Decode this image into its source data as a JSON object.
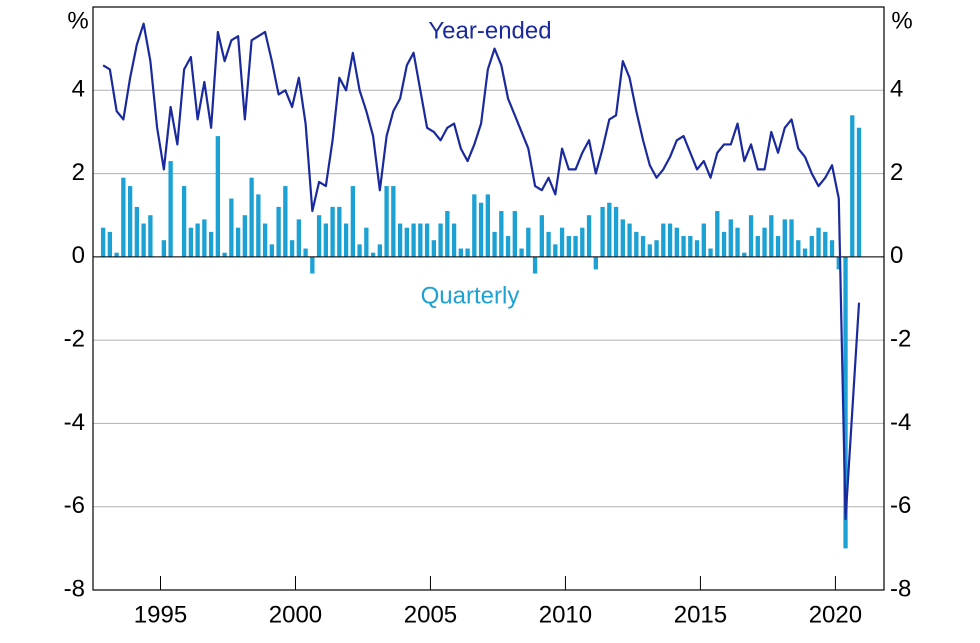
{
  "chart_data": {
    "type": "bar_line",
    "y_unit": "%",
    "x": [
      1992.875,
      1993.125,
      1993.375,
      1993.625,
      1993.875,
      1994.125,
      1994.375,
      1994.625,
      1994.875,
      1995.125,
      1995.375,
      1995.625,
      1995.875,
      1996.125,
      1996.375,
      1996.625,
      1996.875,
      1997.125,
      1997.375,
      1997.625,
      1997.875,
      1998.125,
      1998.375,
      1998.625,
      1998.875,
      1999.125,
      1999.375,
      1999.625,
      1999.875,
      2000.125,
      2000.375,
      2000.625,
      2000.875,
      2001.125,
      2001.375,
      2001.625,
      2001.875,
      2002.125,
      2002.375,
      2002.625,
      2002.875,
      2003.125,
      2003.375,
      2003.625,
      2003.875,
      2004.125,
      2004.375,
      2004.625,
      2004.875,
      2005.125,
      2005.375,
      2005.625,
      2005.875,
      2006.125,
      2006.375,
      2006.625,
      2006.875,
      2007.125,
      2007.375,
      2007.625,
      2007.875,
      2008.125,
      2008.375,
      2008.625,
      2008.875,
      2009.125,
      2009.375,
      2009.625,
      2009.875,
      2010.125,
      2010.375,
      2010.625,
      2010.875,
      2011.125,
      2011.375,
      2011.625,
      2011.875,
      2012.125,
      2012.375,
      2012.625,
      2012.875,
      2013.125,
      2013.375,
      2013.625,
      2013.875,
      2014.125,
      2014.375,
      2014.625,
      2014.875,
      2015.125,
      2015.375,
      2015.625,
      2015.875,
      2016.125,
      2016.375,
      2016.625,
      2016.875,
      2017.125,
      2017.375,
      2017.625,
      2017.875,
      2018.125,
      2018.375,
      2018.625,
      2018.875,
      2019.125,
      2019.375,
      2019.625,
      2019.875,
      2020.125,
      2020.375,
      2020.625,
      2020.875
    ],
    "series": [
      {
        "name": "Quarterly",
        "type": "bar",
        "color": "#1ba1d4",
        "values": [
          0.7,
          0.6,
          0.1,
          1.9,
          1.7,
          1.2,
          0.8,
          1.0,
          0.0,
          0.4,
          2.3,
          0.0,
          1.7,
          0.7,
          0.8,
          0.9,
          0.6,
          2.9,
          0.1,
          1.4,
          0.7,
          1.0,
          1.9,
          1.5,
          0.8,
          0.3,
          1.2,
          1.7,
          0.4,
          0.9,
          0.2,
          -0.4,
          1.0,
          0.8,
          1.2,
          1.2,
          0.8,
          1.7,
          0.3,
          0.7,
          0.1,
          0.3,
          1.7,
          1.7,
          0.8,
          0.7,
          0.8,
          0.8,
          0.8,
          0.4,
          0.8,
          1.1,
          0.8,
          0.2,
          0.2,
          1.5,
          1.3,
          1.5,
          0.6,
          1.1,
          0.5,
          1.1,
          0.2,
          0.7,
          -0.4,
          1.0,
          0.6,
          0.3,
          0.7,
          0.5,
          0.5,
          0.7,
          1.0,
          -0.3,
          1.2,
          1.3,
          1.2,
          0.9,
          0.8,
          0.6,
          0.5,
          0.3,
          0.4,
          0.8,
          0.8,
          0.7,
          0.5,
          0.5,
          0.4,
          0.8,
          0.2,
          1.1,
          0.6,
          0.9,
          0.7,
          0.1,
          1.0,
          0.5,
          0.7,
          1.0,
          0.5,
          0.9,
          0.9,
          0.4,
          0.2,
          0.5,
          0.7,
          0.6,
          0.4,
          -0.3,
          -7.0,
          3.4,
          3.1
        ]
      },
      {
        "name": "Year-ended",
        "type": "line",
        "color": "#1a2a9e",
        "values": [
          4.6,
          4.5,
          3.5,
          3.3,
          4.3,
          5.1,
          5.6,
          4.7,
          3.1,
          2.1,
          3.6,
          2.7,
          4.5,
          4.8,
          3.3,
          4.2,
          3.1,
          5.4,
          4.7,
          5.2,
          5.3,
          3.3,
          5.2,
          5.3,
          5.4,
          4.7,
          3.9,
          4.0,
          3.6,
          4.3,
          3.2,
          1.1,
          1.8,
          1.7,
          2.8,
          4.3,
          4.0,
          4.9,
          4.0,
          3.5,
          2.9,
          1.6,
          2.9,
          3.5,
          3.8,
          4.6,
          4.9,
          4.0,
          3.1,
          3.0,
          2.8,
          3.1,
          3.2,
          2.6,
          2.3,
          2.7,
          3.2,
          4.5,
          5.0,
          4.6,
          3.8,
          3.4,
          3.0,
          2.6,
          1.7,
          1.6,
          1.9,
          1.5,
          2.6,
          2.1,
          2.1,
          2.5,
          2.8,
          2.0,
          2.6,
          3.3,
          3.4,
          4.7,
          4.3,
          3.5,
          2.8,
          2.2,
          1.9,
          2.1,
          2.4,
          2.8,
          2.9,
          2.5,
          2.1,
          2.3,
          1.9,
          2.5,
          2.7,
          2.7,
          3.2,
          2.3,
          2.7,
          2.1,
          2.1,
          3.0,
          2.5,
          3.1,
          3.3,
          2.6,
          2.4,
          2.0,
          1.7,
          1.9,
          2.2,
          1.4,
          -6.3,
          -3.7,
          -1.1
        ]
      }
    ],
    "xlim": [
      1992.5,
      2021.8
    ],
    "xticks": [
      1995,
      2000,
      2005,
      2010,
      2015,
      2020
    ],
    "ylim": [
      -8,
      6
    ],
    "yticks": [
      -8,
      -6,
      -4,
      -2,
      0,
      2,
      4
    ],
    "grid": true
  }
}
